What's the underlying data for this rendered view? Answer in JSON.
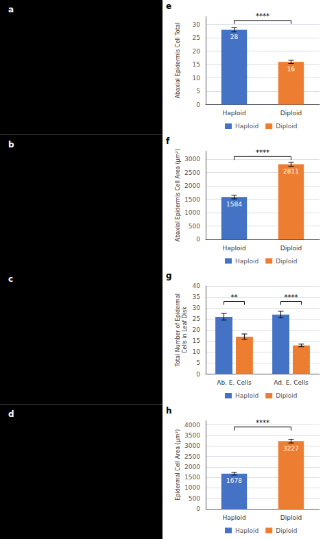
{
  "chart_data": [
    {
      "type": "image",
      "title": "a"
    },
    {
      "type": "image",
      "title": "b"
    },
    {
      "type": "image",
      "title": "c"
    },
    {
      "type": "image",
      "title": "d"
    },
    {
      "type": "bar",
      "title": "e",
      "ylabel": "Abaxial Epidermis Cell Total",
      "categories": [
        "Haploid",
        "Diploid"
      ],
      "values": [
        28,
        16
      ],
      "errors": [
        0.8,
        0.6
      ],
      "colors": [
        "#4472C4",
        "#ED7D31"
      ],
      "ylim": [
        0,
        33
      ],
      "yticks": [
        0,
        5,
        10,
        15,
        20,
        25,
        30
      ],
      "data_labels": true,
      "annotations": [
        {
          "text": "****",
          "y": 31.5
        }
      ],
      "legend": "bottom",
      "grid": true
    },
    {
      "type": "bar",
      "title": "f",
      "ylabel": "Abaxial Epidermis Cell Area (μm²)",
      "categories": [
        "Haploid",
        "Diploid"
      ],
      "values": [
        1584,
        2811
      ],
      "errors": [
        70,
        80
      ],
      "colors": [
        "#4472C4",
        "#ED7D31"
      ],
      "ylim": [
        0,
        3300
      ],
      "yticks": [
        0,
        500,
        1000,
        1500,
        2000,
        2500,
        3000
      ],
      "data_labels": true,
      "annotations": [
        {
          "text": "****",
          "y": 3100
        }
      ],
      "legend": "bottom",
      "grid": true
    },
    {
      "type": "bar",
      "title": "g",
      "ylabel": "Total Number of Epidermal\nCells in Leaf Disk",
      "categories": [
        "Ab. E. Cells",
        "Ad. E. Cells"
      ],
      "series": [
        {
          "name": "Haploid",
          "color": "#4472C4",
          "values": [
            26,
            27
          ],
          "errors": [
            1.5,
            1.5
          ]
        },
        {
          "name": "Diploid",
          "color": "#ED7D31",
          "values": [
            17,
            13
          ],
          "errors": [
            1.2,
            0.6
          ]
        }
      ],
      "ylim": [
        0,
        40
      ],
      "yticks": [
        0,
        5,
        10,
        15,
        20,
        25,
        30,
        35,
        40
      ],
      "annotations": [
        {
          "text": "**",
          "y": 33,
          "category": "Ab. E. Cells"
        },
        {
          "text": "****",
          "y": 33,
          "category": "Ad. E. Cells"
        }
      ],
      "legend": "bottom",
      "grid": true
    },
    {
      "type": "bar",
      "title": "h",
      "ylabel": "Epidermal Cell Area (μm²)",
      "categories": [
        "Haploid",
        "Diploid"
      ],
      "values": [
        1678,
        3227
      ],
      "errors": [
        70,
        90
      ],
      "colors": [
        "#4472C4",
        "#ED7D31"
      ],
      "ylim": [
        0,
        4200
      ],
      "yticks": [
        0,
        500,
        1000,
        1500,
        2000,
        2500,
        3000,
        3500,
        4000
      ],
      "data_labels": true,
      "annotations": [
        {
          "text": "****",
          "y": 3900
        }
      ],
      "legend": "bottom",
      "grid": true
    }
  ]
}
